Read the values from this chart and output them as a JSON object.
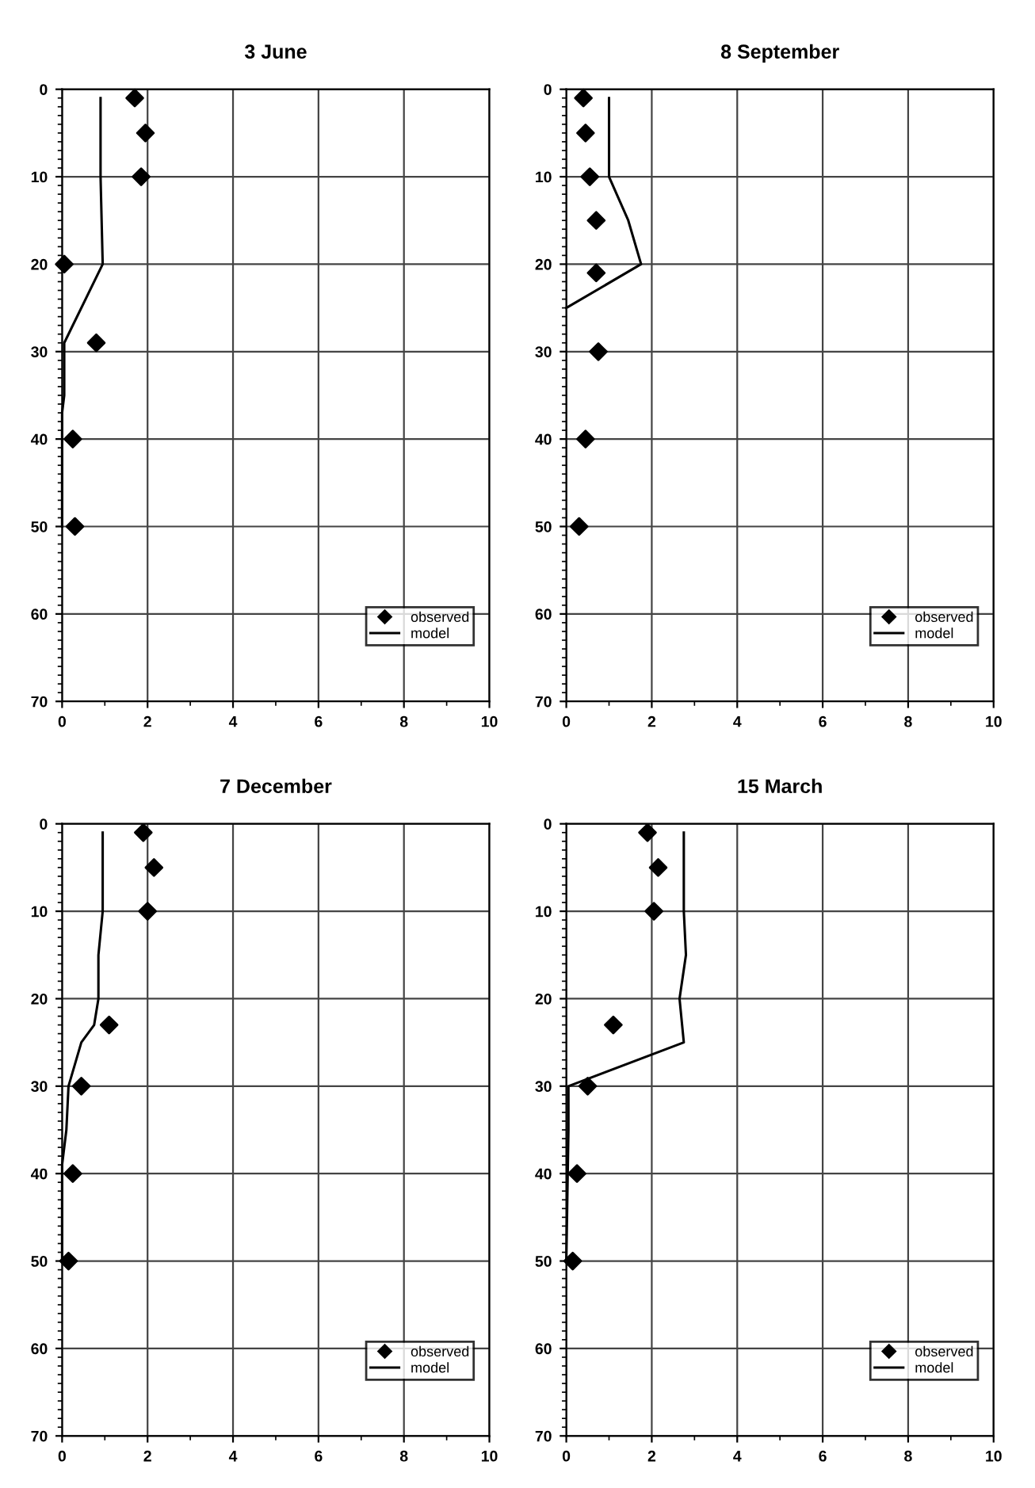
{
  "chart_data": [
    {
      "type": "scatter",
      "title": "3 June",
      "xlim": [
        0,
        10
      ],
      "xticks": [
        0,
        2,
        4,
        6,
        8,
        10
      ],
      "ylim": [
        70,
        0
      ],
      "yticks": [
        0,
        10,
        20,
        30,
        40,
        50,
        60,
        70
      ],
      "grid": true,
      "legend": "bottom right",
      "series": [
        {
          "name": "observed",
          "marker": "diamond",
          "color": "#000000",
          "x": [
            1.7,
            1.95,
            1.85,
            0.05,
            0.8,
            0.25,
            0.3
          ],
          "values": [
            1,
            5,
            10,
            20,
            29,
            40,
            50
          ]
        },
        {
          "name": "model",
          "type": "line",
          "marker": "none",
          "color": "#000000",
          "x": [
            0.9,
            0.9,
            0.95,
            0.05,
            0.05,
            0,
            0
          ],
          "values": [
            1,
            10,
            20,
            29,
            35,
            37,
            50
          ]
        }
      ]
    },
    {
      "type": "scatter",
      "title": "8 September",
      "xlim": [
        0,
        10
      ],
      "xticks": [
        0,
        2,
        4,
        6,
        8,
        10
      ],
      "ylim": [
        70,
        0
      ],
      "yticks": [
        0,
        10,
        20,
        30,
        40,
        50,
        60,
        70
      ],
      "grid": true,
      "legend": "bottom right",
      "series": [
        {
          "name": "observed",
          "marker": "diamond",
          "color": "#000000",
          "x": [
            0.4,
            0.45,
            0.55,
            0.7,
            0.7,
            0.75,
            0.45,
            0.3
          ],
          "values": [
            1,
            5,
            10,
            15,
            21,
            30,
            40,
            50
          ]
        },
        {
          "name": "model",
          "type": "line",
          "marker": "none",
          "color": "#000000",
          "x": [
            1,
            1,
            1.45,
            1.75,
            0
          ],
          "values": [
            1,
            10,
            15,
            20,
            25
          ]
        }
      ]
    },
    {
      "type": "scatter",
      "title": "7 December",
      "xlim": [
        0,
        10
      ],
      "xticks": [
        0,
        2,
        4,
        6,
        8,
        10
      ],
      "ylim": [
        70,
        0
      ],
      "yticks": [
        0,
        10,
        20,
        30,
        40,
        50,
        60,
        70
      ],
      "grid": true,
      "legend": "bottom right",
      "series": [
        {
          "name": "observed",
          "marker": "diamond",
          "color": "#000000",
          "x": [
            1.9,
            2.15,
            2.0,
            1.1,
            0.45,
            0.25,
            0.15
          ],
          "values": [
            1,
            5,
            10,
            23,
            30,
            40,
            50
          ]
        },
        {
          "name": "model",
          "type": "line",
          "marker": "none",
          "color": "#000000",
          "x": [
            0.95,
            0.95,
            0.85,
            0.85,
            0.75,
            0.45,
            0.15,
            0.1,
            0,
            0
          ],
          "values": [
            1,
            10,
            15,
            20,
            23,
            25,
            30,
            35,
            39,
            50
          ]
        }
      ]
    },
    {
      "type": "scatter",
      "title": "15 March",
      "xlim": [
        0,
        10
      ],
      "xticks": [
        0,
        2,
        4,
        6,
        8,
        10
      ],
      "ylim": [
        70,
        0
      ],
      "yticks": [
        0,
        10,
        20,
        30,
        40,
        50,
        60,
        70
      ],
      "grid": true,
      "legend": "bottom right",
      "series": [
        {
          "name": "observed",
          "marker": "diamond",
          "color": "#000000",
          "x": [
            1.9,
            2.15,
            2.05,
            1.1,
            0.5,
            0.25,
            0.15
          ],
          "values": [
            1,
            5,
            10,
            23,
            30,
            40,
            50
          ]
        },
        {
          "name": "model",
          "type": "line",
          "marker": "none",
          "color": "#000000",
          "x": [
            2.75,
            2.75,
            2.8,
            2.65,
            2.75,
            0.05,
            0.05,
            0
          ],
          "values": [
            1,
            10,
            15,
            20,
            25,
            30,
            35,
            50
          ]
        }
      ]
    }
  ]
}
